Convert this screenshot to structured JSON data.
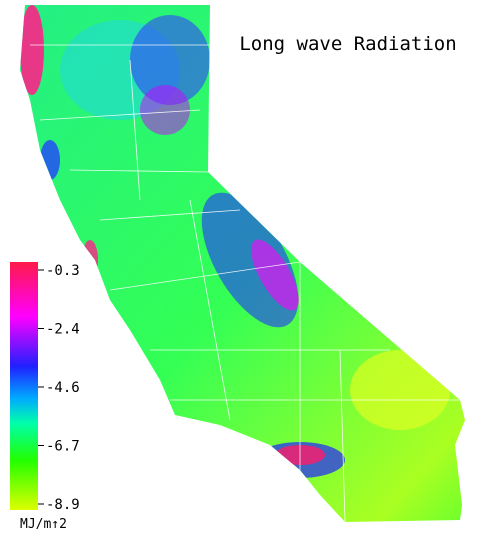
{
  "title": "Long wave Radiation",
  "legend": {
    "ticks": [
      -0.3,
      -2.4,
      -4.6,
      -6.7,
      -8.9
    ],
    "unit": "MJ/m↑2"
  }
}
